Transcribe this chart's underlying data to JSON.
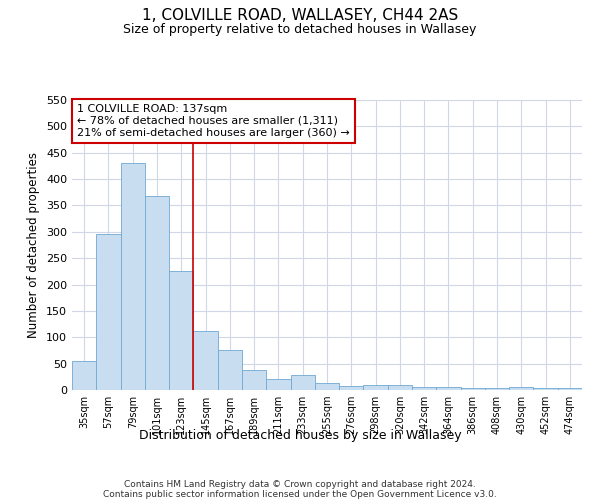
{
  "title": "1, COLVILLE ROAD, WALLASEY, CH44 2AS",
  "subtitle": "Size of property relative to detached houses in Wallasey",
  "xlabel": "Distribution of detached houses by size in Wallasey",
  "ylabel": "Number of detached properties",
  "categories": [
    "35sqm",
    "57sqm",
    "79sqm",
    "101sqm",
    "123sqm",
    "145sqm",
    "167sqm",
    "189sqm",
    "211sqm",
    "233sqm",
    "255sqm",
    "276sqm",
    "298sqm",
    "320sqm",
    "342sqm",
    "364sqm",
    "386sqm",
    "408sqm",
    "430sqm",
    "452sqm",
    "474sqm"
  ],
  "values": [
    55,
    295,
    430,
    368,
    225,
    112,
    75,
    38,
    20,
    29,
    14,
    8,
    9,
    9,
    5,
    5,
    4,
    4,
    5,
    3,
    4
  ],
  "bar_color": "#c9ddf0",
  "bar_edge_color": "#6fa8d4",
  "vline_x": 4.5,
  "vline_color": "#cc0000",
  "annotation_line0": "1 COLVILLE ROAD: 137sqm",
  "annotation_line1": "← 78% of detached houses are smaller (1,311)",
  "annotation_line2": "21% of semi-detached houses are larger (360) →",
  "annotation_box_color": "#ffffff",
  "annotation_box_edge": "#cc0000",
  "ylim": [
    0,
    550
  ],
  "yticks": [
    0,
    50,
    100,
    150,
    200,
    250,
    300,
    350,
    400,
    450,
    500,
    550
  ],
  "footer_line1": "Contains HM Land Registry data © Crown copyright and database right 2024.",
  "footer_line2": "Contains public sector information licensed under the Open Government Licence v3.0.",
  "background_color": "#ffffff",
  "plot_bg_color": "#ffffff",
  "grid_color": "#d0d8e8"
}
